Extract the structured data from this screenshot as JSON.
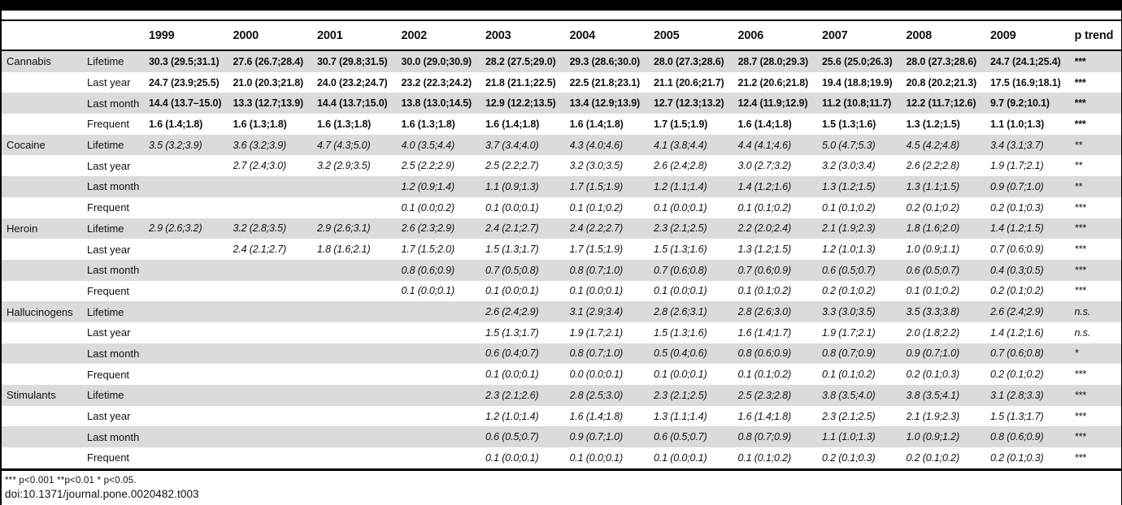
{
  "table": {
    "columns": [
      "",
      "",
      "1999",
      "2000",
      "2001",
      "2002",
      "2003",
      "2004",
      "2005",
      "2006",
      "2007",
      "2008",
      "2009",
      "p trend"
    ],
    "sections": [
      {
        "drug": "Cannabis",
        "italic": false,
        "rows": [
          {
            "label": "Lifetime",
            "values": [
              "30.3 (29.5;31.1)",
              "27.6 (26.7;28.4)",
              "30.7 (29.8;31.5)",
              "30.0 (29.0;30.9)",
              "28.2 (27.5;29.0)",
              "29.3 (28.6;30.0)",
              "28.0 (27.3;28.6)",
              "28.7 (28.0;29.3)",
              "25.6 (25.0;26.3)",
              "28.0 (27.3;28.6)",
              "24.7 (24.1;25.4)"
            ],
            "p": "***"
          },
          {
            "label": "Last year",
            "values": [
              "24.7 (23.9;25.5)",
              "21.0 (20.3;21.8)",
              "24.0 (23.2;24.7)",
              "23.2 (22.3;24.2)",
              "21.8 (21.1;22.5)",
              "22.5 (21.8;23.1)",
              "21.1 (20.6;21.7)",
              "21.2 (20.6;21.8)",
              "19.4 (18.8;19.9)",
              "20.8 (20.2;21.3)",
              "17.5 (16.9;18.1)"
            ],
            "p": "***"
          },
          {
            "label": "Last month",
            "values": [
              "14.4 (13.7–15.0)",
              "13.3 (12.7;13.9)",
              "14.4 (13.7;15.0)",
              "13.8 (13.0;14.5)",
              "12.9 (12.2;13.5)",
              "13.4 (12.9;13.9)",
              "12.7 (12.3;13.2)",
              "12.4 (11.9;12.9)",
              "11.2 (10.8;11.7)",
              "12.2 (11.7;12.6)",
              "9.7 (9.2;10.1)"
            ],
            "p": "***"
          },
          {
            "label": "Frequent",
            "values": [
              "1.6 (1.4;1.8)",
              "1.6 (1.3;1.8)",
              "1.6 (1.3;1.8)",
              "1.6 (1.3;1.8)",
              "1.6 (1.4;1.8)",
              "1.6 (1.4;1.8)",
              "1.7 (1.5;1.9)",
              "1.6 (1.4;1.8)",
              "1.5 (1.3;1.6)",
              "1.3 (1.2;1.5)",
              "1.1 (1.0;1.3)"
            ],
            "p": "***"
          }
        ]
      },
      {
        "drug": "Cocaine",
        "italic": true,
        "rows": [
          {
            "label": "Lifetime",
            "values": [
              "3.5 (3.2;3.9)",
              "3.6 (3.2;3.9)",
              "4.7 (4.3;5.0)",
              "4.0 (3.5;4.4)",
              "3.7 (3.4;4.0)",
              "4.3 (4.0;4.6)",
              "4.1 (3.8;4.4)",
              "4.4 (4.1;4.6)",
              "5.0 (4.7;5.3)",
              "4.5 (4.2;4.8)",
              "3.4 (3.1;3.7)"
            ],
            "p": "**"
          },
          {
            "label": "Last year",
            "values": [
              "",
              "2.7 (2.4;3.0)",
              "3.2 (2.9;3.5)",
              "2.5 (2.2;2.9)",
              "2.5 (2.2;2.7)",
              "3.2 (3.0;3.5)",
              "2.6 (2.4;2.8)",
              "3.0 (2.7;3.2)",
              "3.2 (3.0;3.4)",
              "2.6 (2.2;2.8)",
              "1.9 (1.7;2.1)"
            ],
            "p": "**"
          },
          {
            "label": "Last month",
            "values": [
              "",
              "",
              "",
              "1.2 (0.9;1.4)",
              "1.1 (0.9;1.3)",
              "1.7 (1.5;1.9)",
              "1.2 (1.1;1.4)",
              "1.4 (1.2;1.6)",
              "1.3 (1.2;1.5)",
              "1.3 (1.1;1.5)",
              "0.9 (0.7;1.0)"
            ],
            "p": "**"
          },
          {
            "label": "Frequent",
            "values": [
              "",
              "",
              "",
              "0.1 (0.0;0.2)",
              "0.1 (0.0;0.1)",
              "0.1 (0.1;0.2)",
              "0.1 (0.0;0.1)",
              "0.1 (0.1;0.2)",
              "0.1 (0.1;0.2)",
              "0.2 (0.1;0.2)",
              "0.2 (0.1;0.3)"
            ],
            "p": "***"
          }
        ]
      },
      {
        "drug": "Heroin",
        "italic": true,
        "rows": [
          {
            "label": "Lifetime",
            "values": [
              "2.9 (2.6;3.2)",
              "3.2 (2.8;3.5)",
              "2.9 (2.6;3.1)",
              "2.6 (2.3;2.9)",
              "2.4 (2.1;2.7)",
              "2.4 (2.2;2.7)",
              "2.3 (2.1;2.5)",
              "2.2 (2.0;2.4)",
              "2.1 (1.9;2.3)",
              "1.8 (1.6;2.0)",
              "1.4 (1.2;1.5)"
            ],
            "p": "***"
          },
          {
            "label": "Last year",
            "values": [
              "",
              "2.4 (2.1;2.7)",
              "1.8 (1.6;2.1)",
              "1.7 (1.5;2.0)",
              "1.5 (1.3;1.7)",
              "1.7 (1.5;1.9)",
              "1.5 (1.3;1.6)",
              "1.3 (1.2;1.5)",
              "1.2 (1.0;1.3)",
              "1.0 (0.9;1.1)",
              "0.7 (0.6;0.9)"
            ],
            "p": "***"
          },
          {
            "label": "Last month",
            "values": [
              "",
              "",
              "",
              "0.8 (0.6;0.9)",
              "0.7 (0.5;0.8)",
              "0.8 (0.7;1.0)",
              "0.7 (0.6;0.8)",
              "0.7 (0.6;0.9)",
              "0.6 (0.5;0.7)",
              "0.6 (0.5;0.7)",
              "0.4 (0.3;0.5)"
            ],
            "p": "***"
          },
          {
            "label": "Frequent",
            "values": [
              "",
              "",
              "",
              "0.1 (0.0;0.1)",
              "0.1 (0.0;0.1)",
              "0.1 (0.0;0.1)",
              "0.1 (0.0;0.1)",
              "0.1 (0.1;0.2)",
              "0.2 (0.1;0.2)",
              "0.1 (0.1;0.2)",
              "0.2 (0.1;0.2)"
            ],
            "p": "***"
          }
        ]
      },
      {
        "drug": "Hallucinogens",
        "italic": true,
        "rows": [
          {
            "label": "Lifetime",
            "values": [
              "",
              "",
              "",
              "",
              "2.6 (2.4;2.9)",
              "3.1 (2.9;3.4)",
              "2.8 (2.6;3.1)",
              "2.8 (2.6;3.0)",
              "3.3 (3.0;3.5)",
              "3.5 (3.3;3.8)",
              "2.6 (2.4;2.9)"
            ],
            "p": "n.s."
          },
          {
            "label": "Last year",
            "values": [
              "",
              "",
              "",
              "",
              "1.5 (1.3;1.7)",
              "1.9 (1.7;2.1)",
              "1.5 (1.3;1.6)",
              "1.6 (1.4;1.7)",
              "1.9 (1.7;2.1)",
              "2.0 (1.8;2.2)",
              "1.4 (1.2;1.6)"
            ],
            "p": "n.s."
          },
          {
            "label": "Last month",
            "values": [
              "",
              "",
              "",
              "",
              "0.6 (0.4;0.7)",
              "0.8 (0.7;1.0)",
              "0.5 (0.4;0.6)",
              "0.8 (0.6;0.9)",
              "0.8 (0.7;0.9)",
              "0.9 (0.7;1.0)",
              "0.7 (0.6;0.8)"
            ],
            "p": "*"
          },
          {
            "label": "Frequent",
            "values": [
              "",
              "",
              "",
              "",
              "0.1 (0.0;0.1)",
              "0.0 (0.0;0.1)",
              "0.1 (0.0;0.1)",
              "0.1 (0.1;0.2)",
              "0.1 (0.1;0.2)",
              "0.2 (0.1;0.3)",
              "0.2 (0.1;0.2)"
            ],
            "p": "***"
          }
        ]
      },
      {
        "drug": "Stimulants",
        "italic": true,
        "rows": [
          {
            "label": "Lifetime",
            "values": [
              "",
              "",
              "",
              "",
              "2.3 (2.1;2.6)",
              "2.8 (2.5;3.0)",
              "2.3 (2.1;2.5)",
              "2.5 (2.3;2.8)",
              "3.8 (3.5;4.0)",
              "3.8 (3.5;4.1)",
              "3.1 (2.8;3.3)"
            ],
            "p": "***"
          },
          {
            "label": "Last year",
            "values": [
              "",
              "",
              "",
              "",
              "1.2 (1.0;1.4)",
              "1.6 (1.4;1.8)",
              "1.3 (1.1;1.4)",
              "1.6 (1.4;1.8)",
              "2.3 (2.1;2.5)",
              "2.1 (1.9;2.3)",
              "1.5 (1.3;1.7)"
            ],
            "p": "***"
          },
          {
            "label": "Last month",
            "values": [
              "",
              "",
              "",
              "",
              "0.6 (0.5;0.7)",
              "0.9 (0.7;1.0)",
              "0.6 (0.5;0.7)",
              "0.8 (0.7;0.9)",
              "1.1 (1.0;1.3)",
              "1.0 (0.9;1.2)",
              "0.8 (0.6;0.9)"
            ],
            "p": "***"
          },
          {
            "label": "Frequent",
            "values": [
              "",
              "",
              "",
              "",
              "0.1 (0.0;0.1)",
              "0.1 (0.0;0.1)",
              "0.1 (0.0;0.1)",
              "0.1 (0.1;0.2)",
              "0.2 (0.1;0.3)",
              "0.2 (0.1;0.2)",
              "0.2 (0.1;0.3)"
            ],
            "p": "***"
          }
        ]
      }
    ]
  },
  "footnotes": {
    "significance": "*** p<0.001 **p<0.01 * p<0.05.",
    "doi": "doi:10.1371/journal.pone.0020482.t003"
  }
}
